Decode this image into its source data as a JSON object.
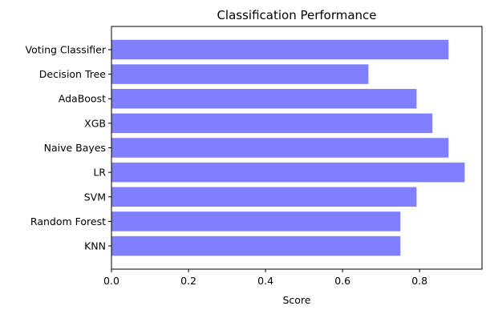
{
  "chart_data": {
    "type": "bar",
    "orientation": "horizontal",
    "title": "Classification Performance",
    "xlabel": "Score",
    "ylabel": "",
    "categories": [
      "Voting Classifier",
      "Decision Tree",
      "AdaBoost",
      "XGB",
      "Naive Bayes",
      "LR",
      "SVM",
      "Random Forest",
      "KNN"
    ],
    "values": [
      0.875,
      0.667,
      0.792,
      0.833,
      0.875,
      0.917,
      0.792,
      0.75,
      0.75
    ],
    "xlim": [
      0,
      0.962
    ],
    "xticks": [
      "0.0",
      "0.2",
      "0.4",
      "0.6",
      "0.8"
    ],
    "xtick_values": [
      0.0,
      0.2,
      0.4,
      0.6,
      0.8
    ],
    "bar_color": "#8080ff",
    "grid": false,
    "legend": "none"
  }
}
